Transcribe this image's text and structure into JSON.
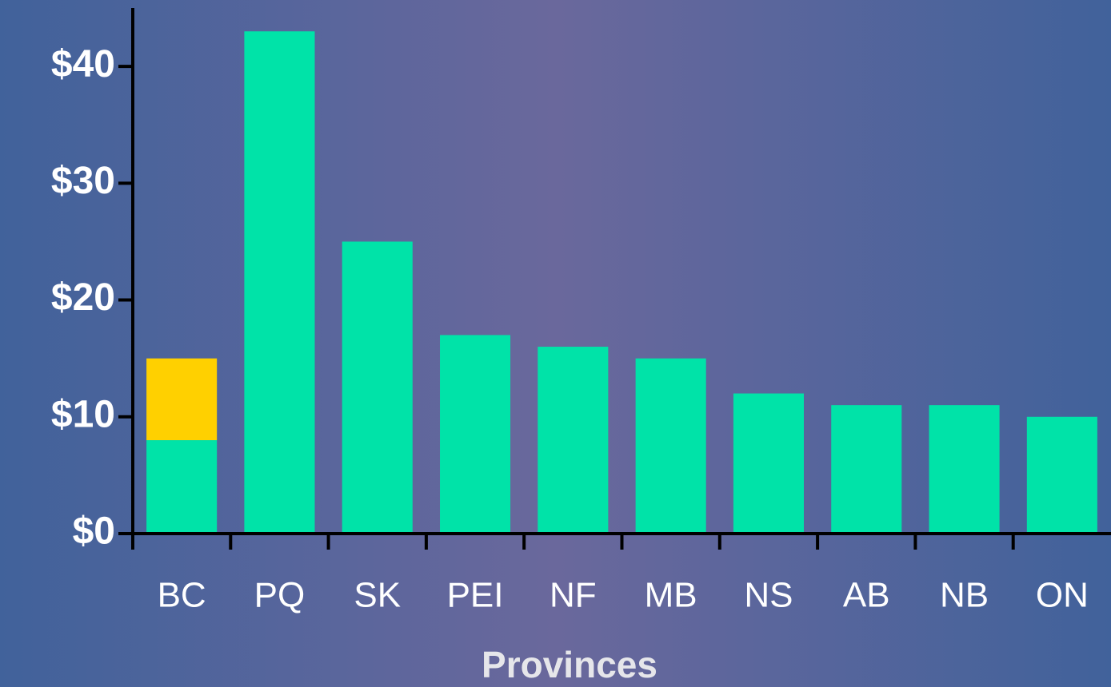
{
  "chart_data": {
    "type": "bar",
    "stacked": true,
    "x_label": "Provinces",
    "categories": [
      "BC",
      "PQ",
      "SK",
      "PEI",
      "NF",
      "MB",
      "NS",
      "AB",
      "NB",
      "ON"
    ],
    "series": [
      {
        "color": "#00e3a8",
        "values": [
          8,
          43,
          25,
          17,
          16,
          15,
          12,
          11,
          11,
          10
        ]
      },
      {
        "color": "#ffd000",
        "values": [
          7,
          null,
          null,
          null,
          null,
          null,
          null,
          null,
          null,
          null
        ]
      }
    ],
    "ylim": [
      0,
      45
    ],
    "yticks": [
      {
        "value": 0,
        "label": "$0"
      },
      {
        "value": 10,
        "label": "$10"
      },
      {
        "value": 20,
        "label": "$20"
      },
      {
        "value": 30,
        "label": "$30"
      },
      {
        "value": 40,
        "label": "$40"
      }
    ],
    "grid": false
  }
}
